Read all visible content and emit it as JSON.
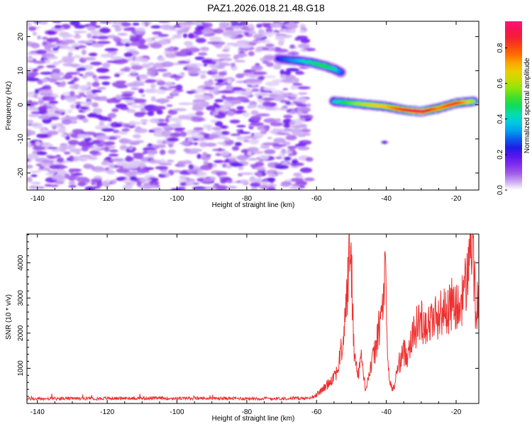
{
  "title": "PAZ1.2026.018.21.48.G18",
  "chart_data": [
    {
      "type": "heatmap",
      "title": "PAZ1.2026.018.21.48.G18",
      "xlabel": "Height of straight line (km)",
      "ylabel": "Frequency (Hz)",
      "xlim": [
        -143,
        -13.5
      ],
      "ylim": [
        -25,
        24.5
      ],
      "x_ticks": [
        -140,
        -120,
        -100,
        -80,
        -60,
        -40,
        -20
      ],
      "y_ticks": [
        -20,
        -10,
        0,
        10,
        20
      ],
      "colorbar": {
        "label": "Normalized spectral amplitude",
        "range": [
          0,
          0.95
        ],
        "ticks": [
          0.0,
          0.2,
          0.4,
          0.6,
          0.8
        ]
      },
      "noise_region": {
        "x_range": [
          -143,
          -62
        ],
        "y_range": [
          -25,
          24.5
        ],
        "amplitude": 0.15
      },
      "ridges": [
        {
          "name": "upper-branch",
          "points": [
            [
              -71,
              13.5
            ],
            [
              -66,
              13
            ],
            [
              -62,
              12.5
            ],
            [
              -58,
              11.5
            ],
            [
              -55,
              10.5
            ],
            [
              -53,
              9.5
            ]
          ],
          "amplitude": [
            0.25,
            0.35,
            0.45,
            0.5,
            0.45,
            0.3
          ]
        },
        {
          "name": "main-branch",
          "points": [
            [
              -55,
              1
            ],
            [
              -50,
              0.5
            ],
            [
              -45,
              0
            ],
            [
              -40,
              -0.5
            ],
            [
              -35,
              -1.5
            ],
            [
              -30,
              -2
            ],
            [
              -25,
              -1
            ],
            [
              -20,
              0.5
            ],
            [
              -15,
              1
            ]
          ],
          "amplitude": [
            0.4,
            0.55,
            0.65,
            0.7,
            0.85,
            0.95,
            0.75,
            0.85,
            0.6
          ]
        },
        {
          "name": "isolated-blob",
          "points": [
            [
              -40.5,
              -11
            ]
          ],
          "amplitude": [
            0.2
          ]
        }
      ]
    },
    {
      "type": "line",
      "xlabel": "Height of straight line (km)",
      "ylabel": "SNR (10 * v/v)",
      "xlim": [
        -143,
        -13.5
      ],
      "ylim": [
        0,
        4820
      ],
      "x_ticks": [
        -140,
        -120,
        -100,
        -80,
        -60,
        -40,
        -20
      ],
      "y_ticks": [
        1000,
        2000,
        3000,
        4000
      ],
      "series": [
        {
          "name": "SNR",
          "color": "#ee3030",
          "x": [
            -143,
            -130,
            -110,
            -90,
            -70,
            -62,
            -60,
            -58,
            -56,
            -54,
            -52.5,
            -51.5,
            -51,
            -50.3,
            -50,
            -49.5,
            -49,
            -48,
            -47,
            -46.5,
            -46,
            -45,
            -44,
            -43,
            -42,
            -41,
            -40.3,
            -40,
            -39.5,
            -39,
            -38.5,
            -38,
            -37.5,
            -37,
            -36,
            -35,
            -34,
            -33,
            -32,
            -31,
            -30,
            -28,
            -26,
            -24,
            -22,
            -21,
            -20,
            -19,
            -18,
            -17,
            -16,
            -15.5,
            -15,
            -14.5,
            -13.5
          ],
          "y": [
            130,
            140,
            150,
            145,
            140,
            150,
            250,
            420,
            650,
            950,
            1700,
            2800,
            3500,
            4800,
            3800,
            2200,
            1200,
            900,
            1400,
            700,
            450,
            800,
            1200,
            1600,
            2200,
            2800,
            3800,
            2500,
            1100,
            600,
            450,
            420,
            600,
            900,
            1250,
            1450,
            1400,
            1850,
            2000,
            2300,
            2350,
            2250,
            2450,
            2600,
            2700,
            2850,
            2700,
            2650,
            3200,
            3400,
            4500,
            4650,
            3900,
            2800,
            2700
          ]
        }
      ]
    }
  ]
}
